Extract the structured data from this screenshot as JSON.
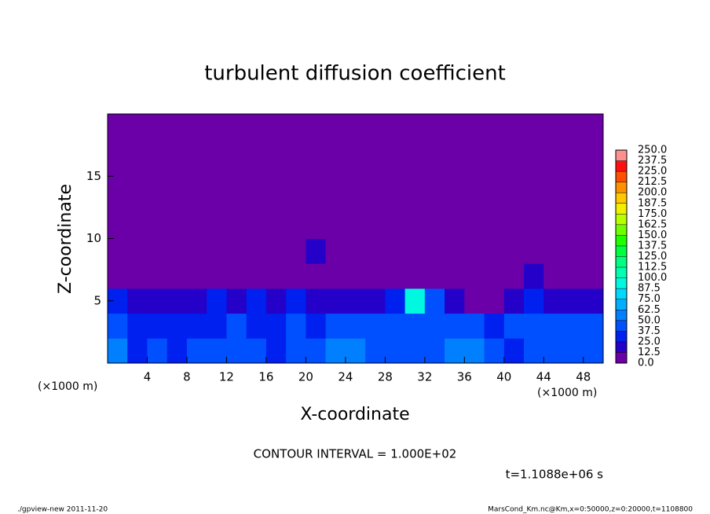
{
  "chart_data": {
    "type": "heatmap",
    "title": "turbulent diffusion coefficient",
    "xlabel": "X-coordinate",
    "ylabel": "Z-coordinate",
    "xunit": "(×1000 m)",
    "yunit": "(×1000 m)",
    "xlim": [
      0,
      50
    ],
    "ylim": [
      0,
      20
    ],
    "xticks": [
      4,
      8,
      12,
      16,
      20,
      24,
      28,
      32,
      36,
      40,
      44,
      48
    ],
    "yticks": [
      5,
      10,
      15
    ],
    "annotation": "CONTOUR INTERVAL = 1.000E+02",
    "time": "t=1.1088e+06 s",
    "footer_left": "./gpview-new  2011-11-20",
    "footer_right": "MarsCond_Km.nc@Km,x=0:50000,z=0:20000,t=1108800",
    "levels": [
      {
        "value": 0,
        "label": "0.0"
      },
      {
        "value": 12.5,
        "label": "12.5"
      },
      {
        "value": 25,
        "label": "25.0"
      },
      {
        "value": 37.5,
        "label": "37.5"
      },
      {
        "value": 50,
        "label": "50.0"
      },
      {
        "value": 62.5,
        "label": "62.5"
      },
      {
        "value": 75,
        "label": "75.0"
      },
      {
        "value": 87.5,
        "label": "87.5"
      },
      {
        "value": 100,
        "label": "100.0"
      },
      {
        "value": 112.5,
        "label": "112.5"
      },
      {
        "value": 125,
        "label": "125.0"
      },
      {
        "value": 137.5,
        "label": "137.5"
      },
      {
        "value": 150,
        "label": "150.0"
      },
      {
        "value": 162.5,
        "label": "162.5"
      },
      {
        "value": 175,
        "label": "175.0"
      },
      {
        "value": 187.5,
        "label": "187.5"
      },
      {
        "value": 200,
        "label": "200.0"
      },
      {
        "value": 212.5,
        "label": "212.5"
      },
      {
        "value": 225,
        "label": "225.0"
      },
      {
        "value": 237.5,
        "label": "237.5"
      },
      {
        "value": 250,
        "label": "250.0"
      }
    ],
    "colors": [
      "#6c00a8",
      "#2400c8",
      "#0020f0",
      "#0050ff",
      "#0080ff",
      "#00b0ff",
      "#00d8ff",
      "#00f8e0",
      "#00ffb0",
      "#00ff80",
      "#00ff40",
      "#20ff00",
      "#70ff00",
      "#b8ff00",
      "#f0f000",
      "#ffc800",
      "#ff9000",
      "#ff5000",
      "#ff1010",
      "#ff9090"
    ],
    "z": [
      [
        50,
        37,
        40,
        35,
        40,
        45,
        38,
        40,
        37,
        42,
        45,
        55,
        62,
        45,
        42,
        40,
        45,
        50,
        55,
        42,
        30,
        45,
        40,
        38,
        40
      ],
      [
        45,
        35,
        30,
        32,
        30,
        35,
        40,
        35,
        30,
        38,
        35,
        40,
        45,
        38,
        40,
        45,
        40,
        42,
        40,
        30,
        45,
        40,
        38,
        40,
        40
      ],
      [
        30,
        20,
        15,
        20,
        15,
        25,
        20,
        25,
        20,
        25,
        20,
        15,
        15,
        15,
        30,
        90,
        40,
        15,
        10,
        10,
        20,
        25,
        20,
        20,
        20
      ],
      [
        0,
        0,
        0,
        0,
        0,
        0,
        0,
        0,
        0,
        0,
        0,
        0,
        0,
        0,
        0,
        0,
        0,
        0,
        0,
        0,
        0,
        15,
        0,
        0,
        0
      ],
      [
        0,
        0,
        0,
        0,
        0,
        0,
        0,
        0,
        0,
        0,
        13,
        0,
        0,
        0,
        0,
        0,
        0,
        0,
        0,
        0,
        0,
        0,
        0,
        0,
        0
      ],
      [
        0,
        0,
        0,
        0,
        0,
        0,
        0,
        0,
        0,
        0,
        0,
        0,
        0,
        0,
        0,
        0,
        0,
        0,
        0,
        0,
        0,
        0,
        0,
        0,
        0
      ],
      [
        0,
        0,
        0,
        0,
        0,
        0,
        0,
        0,
        0,
        0,
        0,
        0,
        0,
        0,
        0,
        0,
        0,
        0,
        0,
        0,
        0,
        0,
        0,
        0,
        0
      ],
      [
        0,
        0,
        0,
        0,
        0,
        0,
        0,
        0,
        0,
        0,
        0,
        0,
        0,
        0,
        0,
        0,
        0,
        0,
        0,
        0,
        0,
        0,
        0,
        0,
        0
      ],
      [
        0,
        0,
        0,
        0,
        0,
        0,
        0,
        0,
        0,
        0,
        0,
        0,
        0,
        0,
        0,
        0,
        0,
        0,
        0,
        0,
        0,
        0,
        0,
        0,
        0
      ],
      [
        0,
        0,
        0,
        0,
        0,
        0,
        0,
        0,
        0,
        0,
        0,
        0,
        0,
        0,
        0,
        0,
        0,
        0,
        0,
        0,
        0,
        0,
        0,
        0,
        0
      ]
    ]
  }
}
